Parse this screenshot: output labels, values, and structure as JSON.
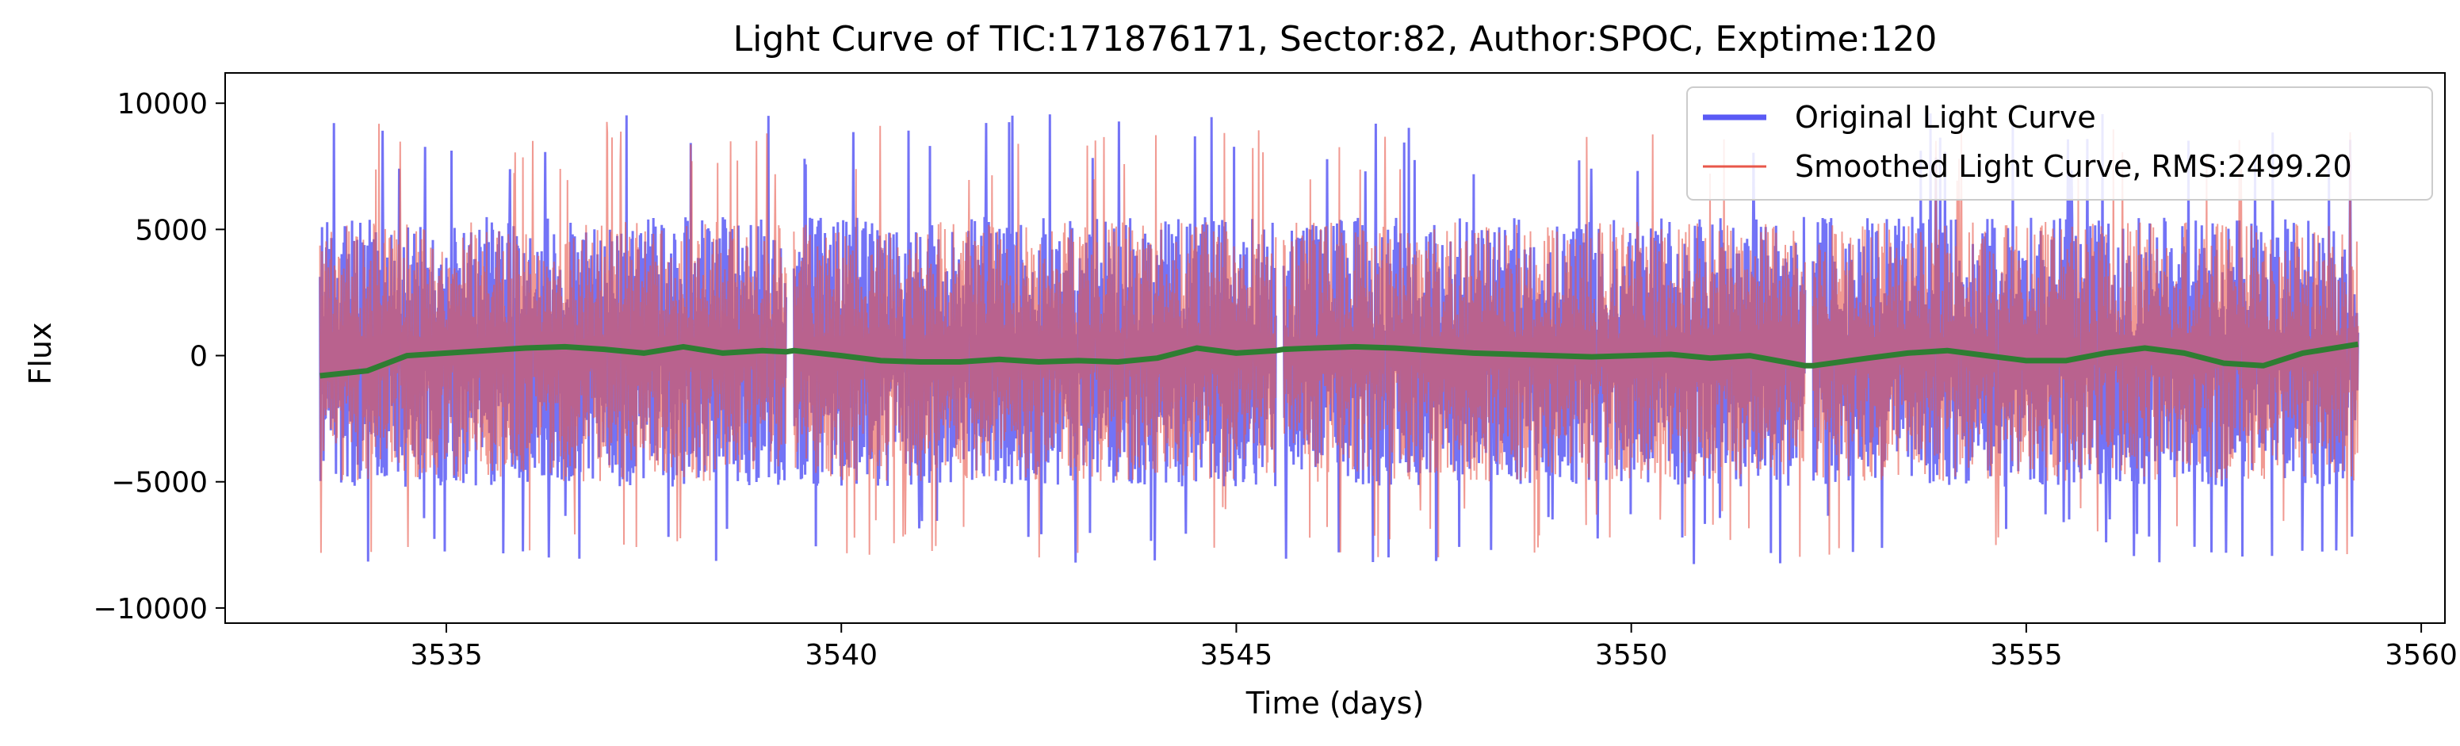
{
  "chart_data": {
    "type": "line",
    "title": "Light Curve of TIC:171876171, Sector:82, Author:SPOC, Exptime:120",
    "xlabel": "Time (days)",
    "ylabel": "Flux",
    "xlim": [
      3532.2,
      3560.3
    ],
    "ylim": [
      -10600,
      11200
    ],
    "xticks": [
      3535,
      3540,
      3545,
      3550,
      3555,
      3560
    ],
    "yticks": [
      -10000,
      -5000,
      0,
      5000,
      10000
    ],
    "xtick_labels": [
      "3535",
      "3540",
      "3545",
      "3550",
      "3555",
      "3560"
    ],
    "ytick_labels": [
      "−10000",
      "−5000",
      "0",
      "5000",
      "10000"
    ],
    "grid": false,
    "legend_position": "top-right",
    "segments": [
      [
        3533.4,
        3539.3
      ],
      [
        3539.4,
        3545.5
      ],
      [
        3545.6,
        3552.2
      ],
      [
        3552.3,
        3559.2
      ]
    ],
    "series": [
      {
        "name": "Original Light Curve",
        "color": "#5a5af5",
        "style": "noisy-flux",
        "typical_range": [
          -5200,
          5500
        ],
        "max": 10200,
        "min": -9500
      },
      {
        "name": "Smoothed Light Curve, RMS:2499.20",
        "color": "#e8574a",
        "style": "noisy-flux",
        "typical_range": [
          -5000,
          5300
        ]
      },
      {
        "name": "",
        "color": "#2e7d32",
        "style": "trend",
        "x": [
          3533.4,
          3534.0,
          3534.5,
          3535.0,
          3535.5,
          3536.0,
          3536.5,
          3537.0,
          3537.5,
          3538.0,
          3538.5,
          3539.0,
          3539.3,
          3539.4,
          3540.0,
          3540.5,
          3541.0,
          3541.5,
          3542.0,
          3542.5,
          3543.0,
          3543.5,
          3544.0,
          3544.5,
          3545.0,
          3545.5,
          3545.6,
          3546.0,
          3546.5,
          3547.0,
          3547.5,
          3548.0,
          3548.5,
          3549.0,
          3549.5,
          3550.0,
          3550.5,
          3551.0,
          3551.5,
          3552.2,
          3552.3,
          3553.0,
          3553.5,
          3554.0,
          3554.5,
          3555.0,
          3555.5,
          3556.0,
          3556.5,
          3557.0,
          3557.5,
          3558.0,
          3558.5,
          3559.2
        ],
        "y": [
          -800,
          -600,
          0,
          100,
          200,
          300,
          350,
          250,
          100,
          350,
          100,
          200,
          150,
          200,
          0,
          -200,
          -250,
          -250,
          -150,
          -250,
          -200,
          -250,
          -100,
          300,
          100,
          200,
          250,
          300,
          350,
          300,
          200,
          100,
          50,
          0,
          -50,
          0,
          50,
          -100,
          0,
          -400,
          -400,
          -100,
          100,
          200,
          0,
          -200,
          -200,
          100,
          300,
          100,
          -300,
          -400,
          100,
          450
        ]
      }
    ]
  }
}
